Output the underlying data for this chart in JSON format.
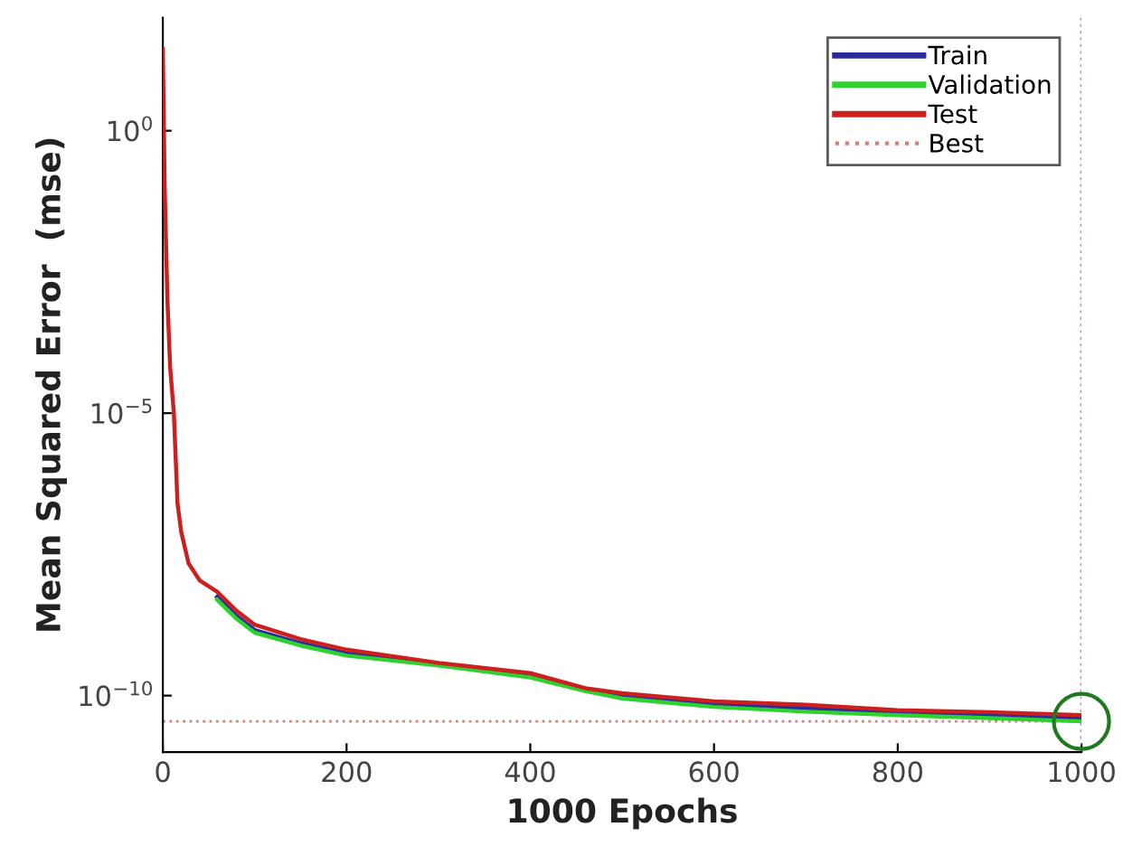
{
  "chart_data": {
    "type": "line",
    "xlabel": "1000 Epochs",
    "ylabel": "Mean Squared Error  (mse)",
    "log": "y",
    "xlim": [
      0,
      1000
    ],
    "xticks": [
      0,
      200,
      400,
      600,
      800,
      1000
    ],
    "ylim": [
      1e-11,
      100
    ],
    "yticks": [
      {
        "value": 1e-10,
        "label": "10$^{−10}$"
      },
      {
        "value": 1e-05,
        "label": "10$^{−5}$"
      },
      {
        "value": 1,
        "label": "10$^{0}$"
      }
    ],
    "x": [
      0,
      2,
      5,
      8,
      12,
      16,
      20,
      28,
      40,
      59,
      80,
      100,
      150,
      200,
      300,
      400,
      460,
      500,
      600,
      700,
      800,
      900,
      1000
    ],
    "series": [
      {
        "name": "Train",
        "color": "#2b2b9e",
        "values": [
          null,
          null,
          null,
          null,
          null,
          null,
          null,
          null,
          null,
          5.6e-09,
          2.6e-09,
          1.45e-09,
          8.5e-10,
          5.6e-10,
          3.6e-10,
          2.3e-10,
          1.3e-10,
          1e-10,
          7e-11,
          6e-11,
          5e-11,
          4.5e-11,
          4e-11
        ]
      },
      {
        "name": "Validation",
        "color": "#2ed12e",
        "values": [
          null,
          null,
          null,
          null,
          null,
          null,
          null,
          null,
          null,
          5e-09,
          2.3e-09,
          1.3e-09,
          7.7e-10,
          5.1e-10,
          3.4e-10,
          2.1e-10,
          1.2e-10,
          8.9e-11,
          6.3e-11,
          5.2e-11,
          4.5e-11,
          4e-11,
          3.5e-11
        ]
      },
      {
        "name": "Test",
        "color": "#cc1f1f",
        "values": [
          28,
          0.1,
          0.001,
          6.3e-05,
          1e-05,
          2.5e-07,
          7.9e-08,
          2.2e-08,
          1.1e-08,
          6.9e-09,
          3.2e-09,
          1.8e-09,
          1e-09,
          6.5e-10,
          3.8e-10,
          2.5e-10,
          1.35e-10,
          1.1e-10,
          7.9e-11,
          6.9e-11,
          5.5e-11,
          5.1e-11,
          4.5e-11
        ]
      },
      {
        "type": "scatter",
        "marker": "circle",
        "color": "#1f7a1f",
        "x": [
          1000
        ],
        "values": [
          3.5e-11
        ]
      }
    ],
    "ref_lines": [
      {
        "axis": "y",
        "value": 3.5e-11,
        "label": "Best",
        "color": "#d08080",
        "line_style": "dotted"
      },
      {
        "axis": "x",
        "value": 1000,
        "color": "#d08080",
        "line_style": "dotted"
      }
    ],
    "legend": "top right",
    "grid": false
  }
}
